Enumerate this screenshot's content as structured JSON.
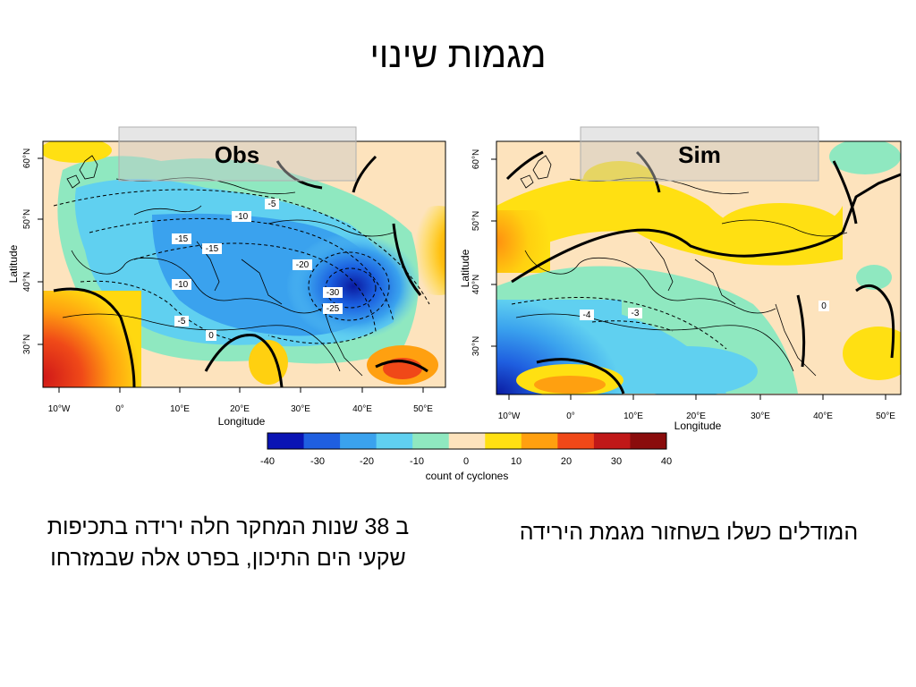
{
  "slide": {
    "title": "מגמות שינוי"
  },
  "panels": [
    {
      "tag": "Obs",
      "contour_labels": [
        "-5",
        "-10",
        "-15",
        "-15",
        "-20",
        "-10",
        "-30",
        "-25",
        "-5",
        "0"
      ]
    },
    {
      "tag": "Sim",
      "contour_labels": [
        "-4",
        "-3",
        "0"
      ]
    }
  ],
  "axes": {
    "xlabel": "Longitude",
    "ylabel": "Latitude",
    "lon_ticks": [
      "10°W",
      "0°",
      "10°E",
      "20°E",
      "30°E",
      "40°E",
      "50°E"
    ],
    "lat_ticks": [
      "60°N",
      "50°N",
      "40°N",
      "30°N"
    ]
  },
  "colorbar": {
    "label": "count of cyclones",
    "ticks": [
      "-40",
      "-30",
      "-20",
      "-10",
      "0",
      "10",
      "20",
      "30",
      "40"
    ],
    "colors": [
      "#0a14b4",
      "#1f5fe0",
      "#3aa2ee",
      "#60d0f0",
      "#8fe8c0",
      "#fde3bd",
      "#ffe012",
      "#ffa010",
      "#f04818",
      "#c01818",
      "#8a0c0c"
    ]
  },
  "captions": {
    "left": "ב 38 שנות המחקר חלה ירידה בתכיפות שקעי הים התיכון, בפרט אלה שבמזרחו",
    "right": "המודלים כשלו בשחזור מגמת הירידה"
  }
}
